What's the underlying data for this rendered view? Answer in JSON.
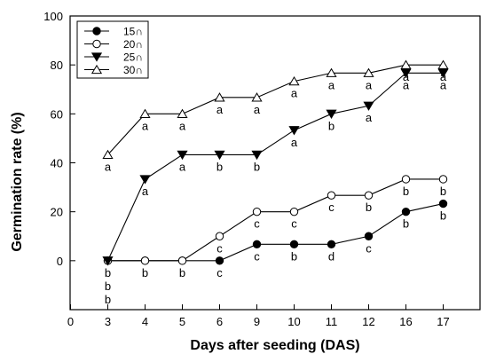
{
  "chart_data": {
    "type": "line",
    "xlabel": "Days after seeding (DAS)",
    "ylabel": "Germination rate (%)",
    "x_tick_labels": [
      "0",
      "3",
      "4",
      "5",
      "6",
      "9",
      "10",
      "11",
      "12",
      "16",
      "17"
    ],
    "y_ticks": [
      0,
      20,
      40,
      60,
      80,
      100
    ],
    "ylim": [
      -20,
      100
    ],
    "x": [
      "3",
      "4",
      "5",
      "6",
      "9",
      "10",
      "11",
      "12",
      "16",
      "17"
    ],
    "legend_position": "top-left",
    "grid": false,
    "series": [
      {
        "name": "15∩",
        "marker": "filled-circle",
        "values": [
          0,
          0,
          0,
          0,
          6.7,
          6.7,
          6.7,
          10,
          20,
          23.3
        ],
        "sig_letters": [
          [
            "b",
            "b",
            "b"
          ],
          [
            "b"
          ],
          [
            "b"
          ],
          [
            "c"
          ],
          [
            "c"
          ],
          [
            "b"
          ],
          [
            "d"
          ],
          [
            "c"
          ],
          [
            "b"
          ],
          [
            "b"
          ]
        ]
      },
      {
        "name": "20∩",
        "marker": "open-circle",
        "values": [
          0,
          0,
          0,
          10,
          20,
          20,
          26.7,
          26.7,
          33.3,
          33.3
        ],
        "sig_letters": [
          [],
          [],
          [],
          [
            "c"
          ],
          [
            "c"
          ],
          [
            "c"
          ],
          [
            "c"
          ],
          [
            "b"
          ],
          [
            "b"
          ],
          [
            "b"
          ]
        ]
      },
      {
        "name": "25∩",
        "marker": "filled-triangle-down",
        "values": [
          0,
          33.3,
          43.3,
          43.3,
          43.3,
          53.3,
          60,
          63.3,
          76.7,
          76.7
        ],
        "sig_letters": [
          [],
          [
            "a"
          ],
          [
            "a"
          ],
          [
            "b"
          ],
          [
            "b"
          ],
          [
            "a"
          ],
          [
            "b"
          ],
          [
            "a"
          ],
          [
            "a"
          ],
          [
            "a"
          ]
        ]
      },
      {
        "name": "30∩",
        "marker": "open-triangle-up",
        "values": [
          43.3,
          60,
          60,
          66.7,
          66.7,
          73.3,
          76.7,
          76.7,
          80,
          80
        ],
        "sig_letters": [
          [
            "a"
          ],
          [
            "a"
          ],
          [
            "a"
          ],
          [
            "a"
          ],
          [
            "a"
          ],
          [
            "a"
          ],
          [
            "a"
          ],
          [
            "a"
          ],
          [
            "a"
          ],
          [
            "a"
          ]
        ]
      }
    ]
  }
}
